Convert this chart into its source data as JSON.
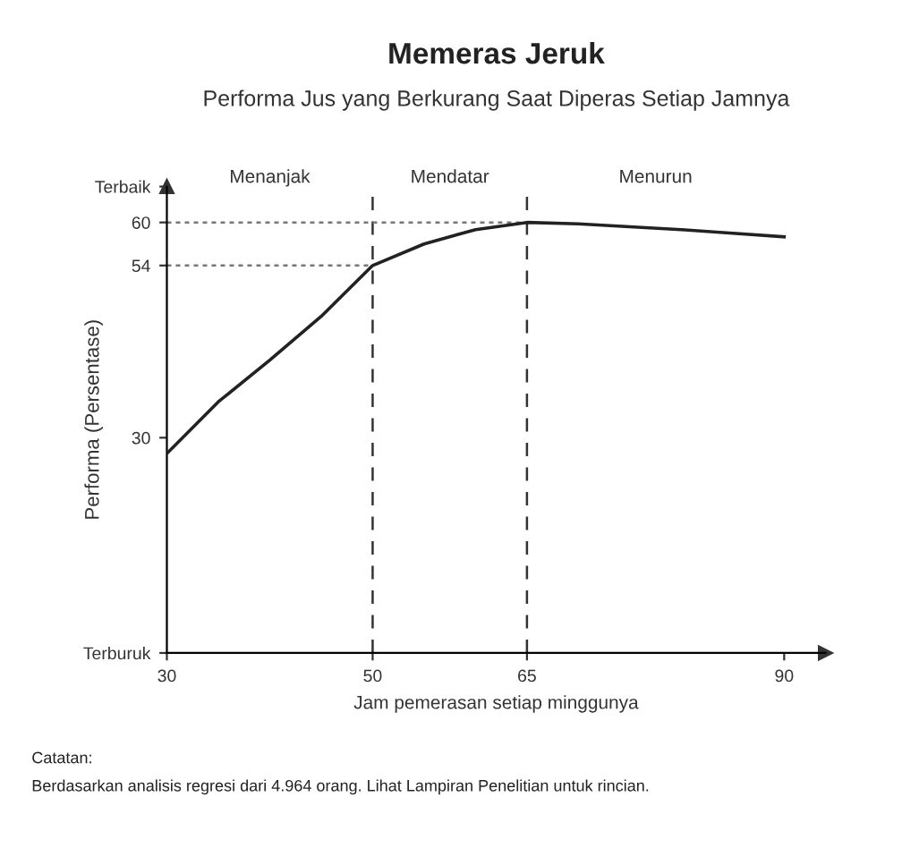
{
  "chart_data": {
    "type": "line",
    "title": "Memeras Jeruk",
    "subtitle": "Performa Jus yang Berkurang Saat Diperas Setiap Jamnya",
    "xlabel": "Jam pemerasan setiap minggunya",
    "ylabel": "Performa (Persentase)",
    "x": [
      30,
      35,
      40,
      45,
      50,
      55,
      60,
      65,
      70,
      75,
      80,
      85,
      90
    ],
    "series": [
      {
        "color": "#222222",
        "values": [
          27.8,
          35,
          40.8,
          46.9,
          54,
          57,
          59,
          60,
          59.8,
          59.4,
          59,
          58.5,
          58
        ]
      }
    ],
    "xlim": [
      30,
      94
    ],
    "ylim": [
      0,
      65
    ],
    "xticks": [
      30,
      50,
      65,
      90
    ],
    "yticks": [
      {
        "value": 0,
        "label": "Terburuk"
      },
      30,
      54,
      60,
      {
        "value": 65,
        "label": "Terbaik"
      }
    ],
    "ref_lines": [
      {
        "axis": "x",
        "value": 50,
        "line_style": "dashed",
        "color": "#333333"
      },
      {
        "axis": "x",
        "value": 65,
        "line_style": "dashed",
        "color": "#333333"
      },
      {
        "axis": "y",
        "value": 60,
        "line_style": "dotted",
        "color": "#777777"
      },
      {
        "axis": "y",
        "value": 54,
        "line_style": "dotted",
        "color": "#777777"
      }
    ],
    "annotations": [
      "Menanjak",
      "Mendatar",
      "Menurun",
      "Catatan:",
      "Berdasarkan analisis regresi dari 4.964 orang. Lihat Lampiran Penelitian untuk rincian."
    ],
    "marker": "none",
    "line_style": "solid",
    "grid": false,
    "legend": false
  }
}
